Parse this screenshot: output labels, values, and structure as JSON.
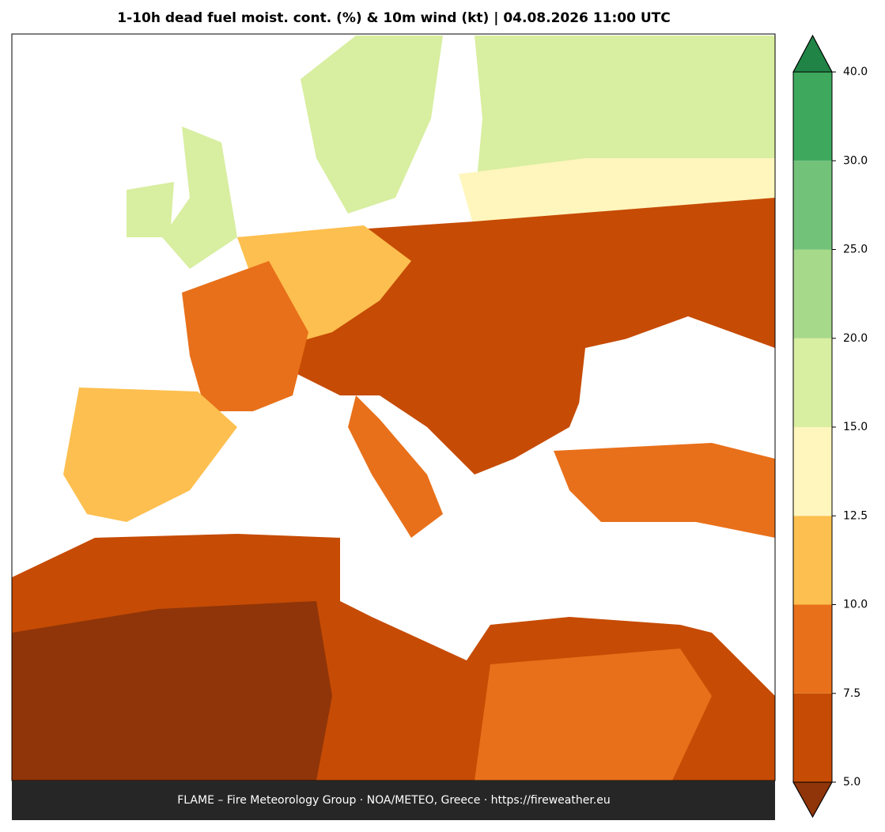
{
  "title": "1-10h dead fuel moist. cont. (%) & 10m wind (kt)  |  04.08.2026 11:00 UTC",
  "footer": "FLAME – Fire Meteorology Group · NOA/METEO, Greece · https://fireweather.eu",
  "colorbar": {
    "ticks": [
      {
        "value": 5,
        "label": "5.0"
      },
      {
        "value": 7.5,
        "label": "7.5"
      },
      {
        "value": 10,
        "label": "10.0"
      },
      {
        "value": 12.5,
        "label": "12.5"
      },
      {
        "value": 15,
        "label": "15.0"
      },
      {
        "value": 20,
        "label": "20.0"
      },
      {
        "value": 25,
        "label": "25.0"
      },
      {
        "value": 30,
        "label": "30.0"
      },
      {
        "value": 40,
        "label": "40.0"
      }
    ],
    "under_color": "#8f3509",
    "colors": [
      "#c64b04",
      "#e8701a",
      "#fdbf4f",
      "#fff6bd",
      "#d8eea0",
      "#a6d98a",
      "#72c27a",
      "#3ea95d"
    ],
    "over_color": "#1f8446"
  }
}
